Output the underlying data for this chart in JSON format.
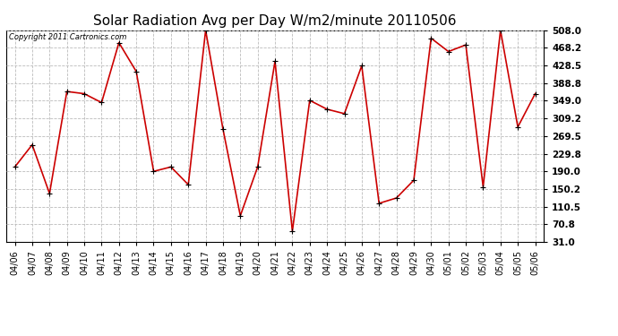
{
  "title": "Solar Radiation Avg per Day W/m2/minute 20110506",
  "copyright_text": "Copyright 2011 Cartronics.com",
  "dates": [
    "04/06",
    "04/07",
    "04/08",
    "04/09",
    "04/10",
    "04/11",
    "04/12",
    "04/13",
    "04/14",
    "04/15",
    "04/16",
    "04/17",
    "04/18",
    "04/19",
    "04/20",
    "04/21",
    "04/22",
    "04/23",
    "04/24",
    "04/25",
    "04/26",
    "04/27",
    "04/28",
    "04/29",
    "04/30",
    "05/01",
    "05/02",
    "05/03",
    "05/04",
    "05/05",
    "05/06"
  ],
  "values": [
    200,
    250,
    140,
    370,
    365,
    345,
    480,
    415,
    190,
    200,
    160,
    508,
    285,
    90,
    200,
    438,
    55,
    350,
    330,
    320,
    428,
    118,
    130,
    170,
    490,
    460,
    475,
    155,
    508,
    290,
    365
  ],
  "line_color": "#cc0000",
  "marker_color": "#000000",
  "bg_color": "#ffffff",
  "grid_color": "#bbbbbb",
  "yticks": [
    31.0,
    70.8,
    110.5,
    150.2,
    190.0,
    229.8,
    269.5,
    309.2,
    349.0,
    388.8,
    428.5,
    468.2,
    508.0
  ],
  "ylim": [
    31.0,
    508.0
  ],
  "title_fontsize": 11,
  "copyright_fontsize": 6,
  "tick_fontsize": 7,
  "ytick_fontsize": 7.5
}
